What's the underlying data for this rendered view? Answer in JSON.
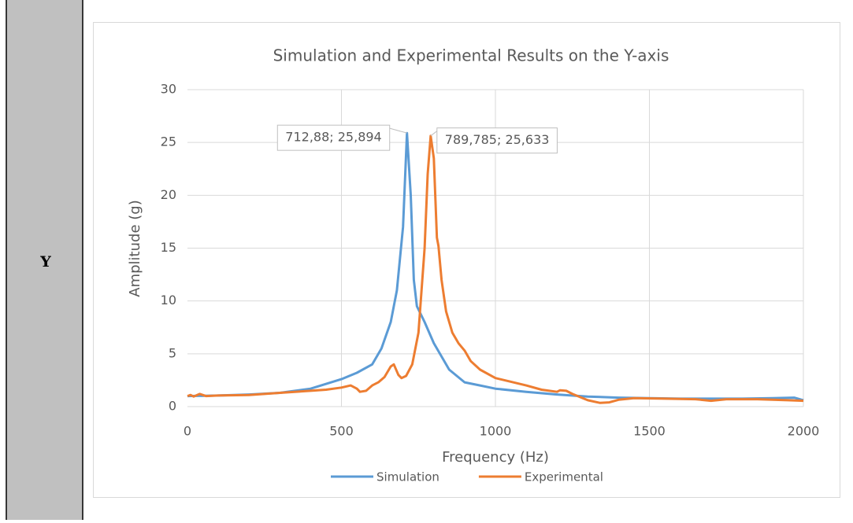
{
  "row_label": "Y",
  "chart_data": {
    "type": "line",
    "title": "Simulation and Experimental Results on the Y-axis",
    "xlabel": "Frequency (Hz)",
    "ylabel": "Amplitude (g)",
    "xlim": [
      0,
      2000
    ],
    "ylim": [
      0,
      30
    ],
    "xticks": [
      0,
      500,
      1000,
      1500,
      2000
    ],
    "yticks": [
      0,
      5,
      10,
      15,
      20,
      25,
      30
    ],
    "grid": true,
    "legend": "bottom",
    "series": [
      {
        "name": "Simulation",
        "color": "#5b9bd5",
        "x": [
          0,
          100,
          200,
          300,
          400,
          500,
          550,
          600,
          630,
          660,
          680,
          700,
          712.88,
          725,
          735,
          745,
          770,
          800,
          850,
          900,
          950,
          1000,
          1100,
          1200,
          1300,
          1400,
          1500,
          1600,
          1700,
          1800,
          1900,
          1970,
          2000
        ],
        "values": [
          1.0,
          1.05,
          1.15,
          1.3,
          1.7,
          2.6,
          3.2,
          4.0,
          5.5,
          8,
          11,
          17,
          25.894,
          20,
          12,
          9.5,
          8,
          6,
          3.5,
          2.3,
          2.0,
          1.7,
          1.4,
          1.15,
          0.95,
          0.85,
          0.8,
          0.75,
          0.75,
          0.75,
          0.8,
          0.85,
          0.6
        ]
      },
      {
        "name": "Experimental",
        "color": "#ed7d31",
        "x": [
          0,
          10,
          20,
          40,
          60,
          100,
          200,
          300,
          400,
          450,
          500,
          530,
          550,
          560,
          580,
          600,
          620,
          640,
          660,
          670,
          685,
          695,
          710,
          730,
          750,
          770,
          780,
          789.785,
          800,
          810,
          815,
          825,
          840,
          860,
          880,
          900,
          920,
          950,
          1000,
          1100,
          1150,
          1200,
          1210,
          1230,
          1250,
          1300,
          1340,
          1370,
          1400,
          1450,
          1550,
          1650,
          1700,
          1750,
          1850,
          1950,
          2000
        ],
        "values": [
          1.0,
          1.1,
          0.95,
          1.2,
          1.0,
          1.05,
          1.1,
          1.3,
          1.5,
          1.6,
          1.8,
          2.0,
          1.7,
          1.4,
          1.5,
          2.0,
          2.3,
          2.8,
          3.8,
          4.0,
          3.0,
          2.7,
          2.9,
          4,
          7,
          15,
          22,
          25.633,
          23.5,
          16,
          15.2,
          12,
          9,
          7,
          6,
          5.3,
          4.3,
          3.5,
          2.7,
          2.0,
          1.6,
          1.4,
          1.55,
          1.5,
          1.2,
          0.6,
          0.35,
          0.4,
          0.65,
          0.8,
          0.75,
          0.7,
          0.55,
          0.7,
          0.7,
          0.6,
          0.55
        ]
      }
    ],
    "annotations": [
      {
        "text": "712,88; 25,894",
        "x": 712.88,
        "y": 25.894
      },
      {
        "text": "789,785; 25,633",
        "x": 789.785,
        "y": 25.633
      }
    ]
  }
}
